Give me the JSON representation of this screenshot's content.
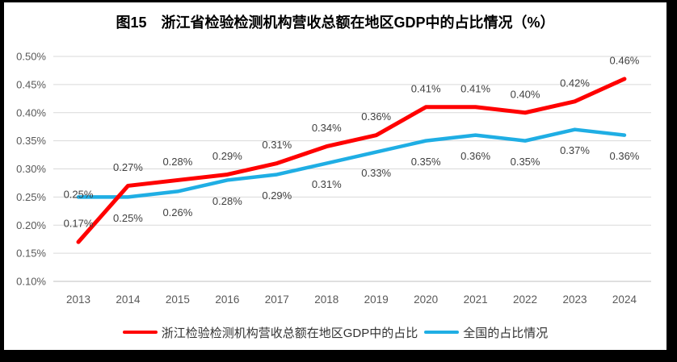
{
  "title": "图15　浙江省检验检测机构营收总额在地区GDP中的占比情况（%）",
  "chart_data": {
    "type": "line",
    "title": "图15　浙江省检验检测机构营收总额在地区GDP中的占比情况（%）",
    "x_categories": [
      "2013",
      "2014",
      "2015",
      "2016",
      "2017",
      "2018",
      "2019",
      "2020",
      "2021",
      "2022",
      "2023",
      "2024"
    ],
    "ylim": [
      0.1,
      0.5
    ],
    "y_ticks": [
      {
        "value": 0.1,
        "label": "0.10%"
      },
      {
        "value": 0.15,
        "label": "0.15%"
      },
      {
        "value": 0.2,
        "label": "0.20%"
      },
      {
        "value": 0.25,
        "label": "0.25%"
      },
      {
        "value": 0.3,
        "label": "0.30%"
      },
      {
        "value": 0.35,
        "label": "0.35%"
      },
      {
        "value": 0.4,
        "label": "0.40%"
      },
      {
        "value": 0.45,
        "label": "0.45%"
      },
      {
        "value": 0.5,
        "label": "0.50%"
      }
    ],
    "grid": true,
    "legend_position": "bottom",
    "series": [
      {
        "name": "浙江检验检测机构营收总额在地区GDP中的占比",
        "color": "#FF0000",
        "values": [
          0.17,
          0.27,
          0.28,
          0.29,
          0.31,
          0.34,
          0.36,
          0.41,
          0.41,
          0.4,
          0.42,
          0.46
        ],
        "labels": [
          "0.17%",
          "0.27%",
          "0.28%",
          "0.29%",
          "0.31%",
          "0.34%",
          "0.36%",
          "0.41%",
          "0.41%",
          "0.40%",
          "0.42%",
          "0.46%"
        ],
        "labels_position": "above"
      },
      {
        "name": "全国的占比情况",
        "color": "#1FAEE4",
        "values": [
          0.25,
          0.25,
          0.26,
          0.28,
          0.29,
          0.31,
          0.33,
          0.35,
          0.36,
          0.35,
          0.37,
          0.36
        ],
        "labels": [
          "0.25%",
          "0.25%",
          "0.26%",
          "0.28%",
          "0.29%",
          "0.31%",
          "0.33%",
          "0.35%",
          "0.36%",
          "0.35%",
          "0.37%",
          "0.36%"
        ],
        "labels_position": "below",
        "label_position_overrides": {
          "0": "above-touching"
        }
      }
    ]
  },
  "colors": {
    "frame": "#000000",
    "background": "#FFFFFF",
    "grid": "#D9D9D9",
    "axis_line": "#BFBFBF",
    "tick_text": "#595959",
    "label_text": "#404040"
  }
}
